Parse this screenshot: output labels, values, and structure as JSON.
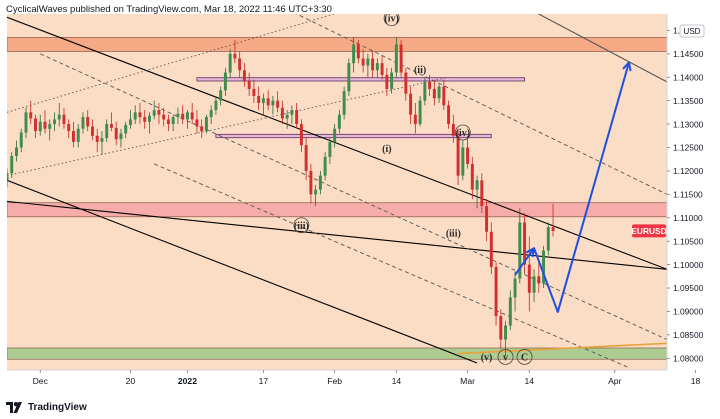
{
  "header": {
    "publisher_line": "CyclicalWaves published on TradingView.com, Mar 18, 2022 11:46 UTC+3:30"
  },
  "footer": {
    "brand": "TradingView"
  },
  "chart_data": {
    "type": "candlestick",
    "symbol_label": "EURUSD",
    "currency_label": "USD",
    "y_ticks": [
      1.15,
      1.145,
      1.14,
      1.135,
      1.13,
      1.125,
      1.12,
      1.115,
      1.11,
      1.105,
      1.1,
      1.095,
      1.09,
      1.085,
      1.08
    ],
    "y_tick_labels": [
      "1.15000",
      "1.14500",
      "1.14000",
      "1.13500",
      "1.13000",
      "1.12500",
      "1.12000",
      "1.11500",
      "1.11000",
      "1.10500",
      "1.10000",
      "1.09500",
      "1.09000",
      "1.08500",
      "1.08000"
    ],
    "ylim": [
      1.0775,
      1.1535
    ],
    "xlim_days": [
      -7,
      132
    ],
    "x_ticks": [
      {
        "day": 0,
        "label": "Dec",
        "bold": false
      },
      {
        "day": 19,
        "label": "20",
        "bold": false
      },
      {
        "day": 31,
        "label": "2022",
        "bold": true
      },
      {
        "day": 47,
        "label": "17",
        "bold": false
      },
      {
        "day": 62,
        "label": "Feb",
        "bold": false
      },
      {
        "day": 75,
        "label": "14",
        "bold": false
      },
      {
        "day": 90,
        "label": "Mar",
        "bold": false
      },
      {
        "day": 103,
        "label": "14",
        "bold": false
      },
      {
        "day": 121,
        "label": "Apr",
        "bold": false
      },
      {
        "day": 138,
        "label": "18",
        "bold": false
      }
    ],
    "current_price": 1.1072,
    "zones": [
      {
        "name": "resistance-zone-top",
        "y1": 1.1455,
        "y2": 1.1485,
        "color": "#f5a07a"
      },
      {
        "name": "resistance-zone-mid",
        "y1": 1.1102,
        "y2": 1.1132,
        "color": "#f4a3a3"
      },
      {
        "name": "support-zone-bottom",
        "y1": 1.0798,
        "y2": 1.0822,
        "color": "#9fc98a"
      }
    ],
    "boxes": [
      {
        "name": "purple-box-upper",
        "day1": 33,
        "day2": 102,
        "y1": 1.1392,
        "y2": 1.1399
      },
      {
        "name": "purple-box-lower",
        "day1": 37,
        "day2": 95,
        "y1": 1.1271,
        "y2": 1.1278
      }
    ],
    "trend_lines": [
      {
        "name": "upper-channel-line",
        "style": "solid",
        "color": "#000000",
        "x1": -7,
        "y1": 1.1528,
        "x2": 132,
        "y2": 1.099
      },
      {
        "name": "lower-resistance-line",
        "style": "solid",
        "color": "#000000",
        "x1": -7,
        "y1": 1.1135,
        "x2": 132,
        "y2": 1.099
      },
      {
        "name": "lower-channel-line",
        "style": "solid",
        "color": "#000000",
        "x1": -7,
        "y1": 1.118,
        "x2": 92,
        "y2": 1.079
      },
      {
        "name": "top-channel-line",
        "style": "solid",
        "color": "#555555",
        "x1": 91,
        "y1": 1.161,
        "x2": 132,
        "y2": 1.139
      },
      {
        "name": "dotted-upper",
        "style": "dotted",
        "color": "#555555",
        "x1": -7,
        "y1": 1.1325,
        "x2": 70,
        "y2": 1.156
      },
      {
        "name": "dotted-middle",
        "style": "dotted",
        "color": "#555555",
        "x1": -7,
        "y1": 1.119,
        "x2": 86,
        "y2": 1.14
      },
      {
        "name": "dashed-right-1",
        "style": "dashed",
        "color": "#555555",
        "x1": 52,
        "y1": 1.1545,
        "x2": 132,
        "y2": 1.115
      },
      {
        "name": "dashed-right-2",
        "style": "dashed",
        "color": "#555555",
        "x1": 0,
        "y1": 1.145,
        "x2": 132,
        "y2": 1.084
      },
      {
        "name": "dashed-lower",
        "style": "dashed",
        "color": "#555555",
        "x1": 24,
        "y1": 1.1215,
        "x2": 124,
        "y2": 1.078
      },
      {
        "name": "orange-support-line",
        "style": "solid",
        "color": "#e8a33b",
        "x1": 88,
        "y1": 1.081,
        "x2": 132,
        "y2": 1.0832
      }
    ],
    "forecast_path": {
      "color": "#1f4fe0",
      "points": [
        [
          100,
          1.0978
        ],
        [
          104,
          1.1035
        ],
        [
          109,
          1.0899
        ],
        [
          124,
          1.1432
        ]
      ]
    },
    "wave_labels": [
      {
        "text": "(iv)",
        "day": 74,
        "price": 1.1526,
        "circled": true
      },
      {
        "text": "(ii)",
        "day": 80,
        "price": 1.1416,
        "circled": false
      },
      {
        "text": "(iv)",
        "day": 89,
        "price": 1.1282,
        "circled": true
      },
      {
        "text": "(i)",
        "day": 73,
        "price": 1.1248,
        "circled": false
      },
      {
        "text": "(iii)",
        "day": 55,
        "price": 1.1084,
        "circled": true
      },
      {
        "text": "(iii)",
        "day": 87,
        "price": 1.1068,
        "circled": false
      },
      {
        "text": "(v)",
        "day": 94,
        "price": 1.0803,
        "circled": false
      },
      {
        "text": "v",
        "day": 98,
        "price": 1.0803,
        "circled": true
      },
      {
        "text": "C",
        "day": 102,
        "price": 1.0803,
        "circled": true
      }
    ],
    "candles": [
      [
        -7,
        1.118,
        1.1205,
        1.1165,
        1.1195
      ],
      [
        -6,
        1.1195,
        1.124,
        1.1185,
        1.1232
      ],
      [
        -5,
        1.1232,
        1.1265,
        1.122,
        1.125
      ],
      [
        -4,
        1.125,
        1.129,
        1.124,
        1.1282
      ],
      [
        -3,
        1.1282,
        1.1335,
        1.127,
        1.1325
      ],
      [
        -2,
        1.1325,
        1.135,
        1.13,
        1.1312
      ],
      [
        -1,
        1.1312,
        1.132,
        1.127,
        1.1285
      ],
      [
        0,
        1.1285,
        1.132,
        1.1275,
        1.1305
      ],
      [
        1,
        1.1305,
        1.133,
        1.128,
        1.129
      ],
      [
        2,
        1.129,
        1.131,
        1.1265,
        1.13
      ],
      [
        3,
        1.13,
        1.1325,
        1.1285,
        1.131
      ],
      [
        4,
        1.131,
        1.1345,
        1.1295,
        1.132
      ],
      [
        5,
        1.132,
        1.1335,
        1.129,
        1.13
      ],
      [
        6,
        1.13,
        1.131,
        1.127,
        1.1285
      ],
      [
        7,
        1.1285,
        1.1305,
        1.125,
        1.1262
      ],
      [
        8,
        1.1262,
        1.13,
        1.125,
        1.129
      ],
      [
        9,
        1.129,
        1.1325,
        1.128,
        1.1315
      ],
      [
        10,
        1.1315,
        1.133,
        1.1285,
        1.1295
      ],
      [
        11,
        1.1295,
        1.131,
        1.1265,
        1.1275
      ],
      [
        12,
        1.1275,
        1.129,
        1.124,
        1.1262
      ],
      [
        13,
        1.1262,
        1.1285,
        1.1235,
        1.127
      ],
      [
        14,
        1.127,
        1.131,
        1.1262,
        1.13
      ],
      [
        15,
        1.13,
        1.1325,
        1.1285,
        1.1292
      ],
      [
        16,
        1.1292,
        1.1305,
        1.1255,
        1.1268
      ],
      [
        17,
        1.1268,
        1.129,
        1.125,
        1.128
      ],
      [
        18,
        1.128,
        1.1305,
        1.127,
        1.1298
      ],
      [
        19,
        1.1298,
        1.133,
        1.129,
        1.131
      ],
      [
        20,
        1.131,
        1.134,
        1.13,
        1.1325
      ],
      [
        21,
        1.1325,
        1.1345,
        1.13,
        1.1315
      ],
      [
        22,
        1.1315,
        1.133,
        1.129,
        1.1305
      ],
      [
        23,
        1.1305,
        1.1325,
        1.128,
        1.1318
      ],
      [
        24,
        1.1318,
        1.135,
        1.131,
        1.133
      ],
      [
        25,
        1.133,
        1.1345,
        1.13,
        1.132
      ],
      [
        26,
        1.132,
        1.1335,
        1.1295,
        1.131
      ],
      [
        27,
        1.131,
        1.132,
        1.1285,
        1.13
      ],
      [
        28,
        1.13,
        1.132,
        1.1285,
        1.1315
      ],
      [
        29,
        1.1315,
        1.1335,
        1.13,
        1.1322
      ],
      [
        30,
        1.1322,
        1.134,
        1.13,
        1.131
      ],
      [
        31,
        1.131,
        1.133,
        1.129,
        1.1325
      ],
      [
        32,
        1.1325,
        1.1345,
        1.13,
        1.131
      ],
      [
        33,
        1.131,
        1.133,
        1.128,
        1.1295
      ],
      [
        34,
        1.1295,
        1.131,
        1.127,
        1.1285
      ],
      [
        35,
        1.1285,
        1.132,
        1.128,
        1.1315
      ],
      [
        36,
        1.1315,
        1.134,
        1.13,
        1.133
      ],
      [
        37,
        1.133,
        1.136,
        1.132,
        1.135
      ],
      [
        38,
        1.135,
        1.138,
        1.134,
        1.1372
      ],
      [
        39,
        1.1372,
        1.142,
        1.136,
        1.141
      ],
      [
        40,
        1.141,
        1.146,
        1.14,
        1.145
      ],
      [
        41,
        1.145,
        1.148,
        1.143,
        1.144
      ],
      [
        42,
        1.144,
        1.1455,
        1.14,
        1.1415
      ],
      [
        43,
        1.1415,
        1.143,
        1.138,
        1.1392
      ],
      [
        44,
        1.1392,
        1.141,
        1.136,
        1.1375
      ],
      [
        45,
        1.1375,
        1.1395,
        1.1345,
        1.136
      ],
      [
        46,
        1.136,
        1.138,
        1.133,
        1.1345
      ],
      [
        47,
        1.1345,
        1.1365,
        1.132,
        1.1355
      ],
      [
        48,
        1.1355,
        1.1372,
        1.133,
        1.134
      ],
      [
        49,
        1.134,
        1.136,
        1.132,
        1.135
      ],
      [
        50,
        1.135,
        1.137,
        1.1325,
        1.1335
      ],
      [
        51,
        1.1335,
        1.135,
        1.13,
        1.1312
      ],
      [
        52,
        1.1312,
        1.133,
        1.129,
        1.132
      ],
      [
        53,
        1.132,
        1.134,
        1.13,
        1.133
      ],
      [
        54,
        1.133,
        1.1345,
        1.129,
        1.13
      ],
      [
        55,
        1.13,
        1.131,
        1.124,
        1.1255
      ],
      [
        56,
        1.1255,
        1.127,
        1.118,
        1.12
      ],
      [
        57,
        1.12,
        1.1215,
        1.113,
        1.115
      ],
      [
        58,
        1.115,
        1.117,
        1.1125,
        1.116
      ],
      [
        59,
        1.116,
        1.12,
        1.115,
        1.119
      ],
      [
        60,
        1.119,
        1.124,
        1.118,
        1.123
      ],
      [
        61,
        1.123,
        1.127,
        1.1215,
        1.1262
      ],
      [
        62,
        1.1262,
        1.13,
        1.125,
        1.129
      ],
      [
        63,
        1.129,
        1.133,
        1.128,
        1.132
      ],
      [
        64,
        1.132,
        1.138,
        1.131,
        1.137
      ],
      [
        65,
        1.137,
        1.144,
        1.136,
        1.143
      ],
      [
        66,
        1.143,
        1.1485,
        1.141,
        1.147
      ],
      [
        67,
        1.147,
        1.148,
        1.143,
        1.144
      ],
      [
        68,
        1.144,
        1.146,
        1.141,
        1.1425
      ],
      [
        69,
        1.1425,
        1.145,
        1.14,
        1.144
      ],
      [
        70,
        1.144,
        1.1455,
        1.14,
        1.1415
      ],
      [
        71,
        1.1415,
        1.144,
        1.14,
        1.143
      ],
      [
        72,
        1.143,
        1.1445,
        1.1395,
        1.1405
      ],
      [
        73,
        1.1405,
        1.142,
        1.136,
        1.1375
      ],
      [
        74,
        1.1375,
        1.142,
        1.1365,
        1.141
      ],
      [
        75,
        1.141,
        1.1485,
        1.14,
        1.147
      ],
      [
        76,
        1.147,
        1.148,
        1.14,
        1.141
      ],
      [
        77,
        1.141,
        1.142,
        1.135,
        1.1365
      ],
      [
        78,
        1.1365,
        1.138,
        1.13,
        1.132
      ],
      [
        79,
        1.132,
        1.1345,
        1.128,
        1.13
      ],
      [
        80,
        1.13,
        1.136,
        1.1295,
        1.135
      ],
      [
        81,
        1.135,
        1.14,
        1.134,
        1.139
      ],
      [
        82,
        1.139,
        1.1405,
        1.136,
        1.1375
      ],
      [
        83,
        1.1375,
        1.1395,
        1.134,
        1.1355
      ],
      [
        84,
        1.1355,
        1.1385,
        1.1345,
        1.138
      ],
      [
        85,
        1.138,
        1.1395,
        1.133,
        1.134
      ],
      [
        86,
        1.134,
        1.135,
        1.129,
        1.13
      ],
      [
        87,
        1.13,
        1.132,
        1.126,
        1.1275
      ],
      [
        88,
        1.1275,
        1.129,
        1.117,
        1.119
      ],
      [
        89,
        1.119,
        1.1265,
        1.118,
        1.125
      ],
      [
        90,
        1.125,
        1.1275,
        1.1205,
        1.1215
      ],
      [
        91,
        1.1215,
        1.123,
        1.114,
        1.116
      ],
      [
        92,
        1.116,
        1.119,
        1.112,
        1.118
      ],
      [
        93,
        1.118,
        1.1195,
        1.111,
        1.1125
      ],
      [
        94,
        1.1125,
        1.114,
        1.105,
        1.107
      ],
      [
        95,
        1.107,
        1.109,
        1.098,
        1.0995
      ],
      [
        96,
        1.0995,
        1.1005,
        1.087,
        1.089
      ],
      [
        97,
        1.089,
        1.0905,
        1.082,
        1.084
      ],
      [
        98,
        1.084,
        1.088,
        1.0805,
        1.087
      ],
      [
        99,
        1.087,
        1.0945,
        1.086,
        1.093
      ],
      [
        100,
        1.093,
        1.0985,
        1.09,
        1.097
      ],
      [
        101,
        1.097,
        1.112,
        1.096,
        1.109
      ],
      [
        102,
        1.109,
        1.111,
        1.098,
        1.1
      ],
      [
        103,
        1.1,
        1.106,
        1.09,
        1.094
      ],
      [
        104,
        1.094,
        1.099,
        1.092,
        1.0975
      ],
      [
        105,
        1.0975,
        1.101,
        1.094,
        1.096
      ],
      [
        106,
        1.096,
        1.104,
        1.095,
        1.103
      ],
      [
        107,
        1.103,
        1.109,
        1.102,
        1.108
      ],
      [
        108,
        1.108,
        1.113,
        1.106,
        1.1072
      ]
    ]
  }
}
